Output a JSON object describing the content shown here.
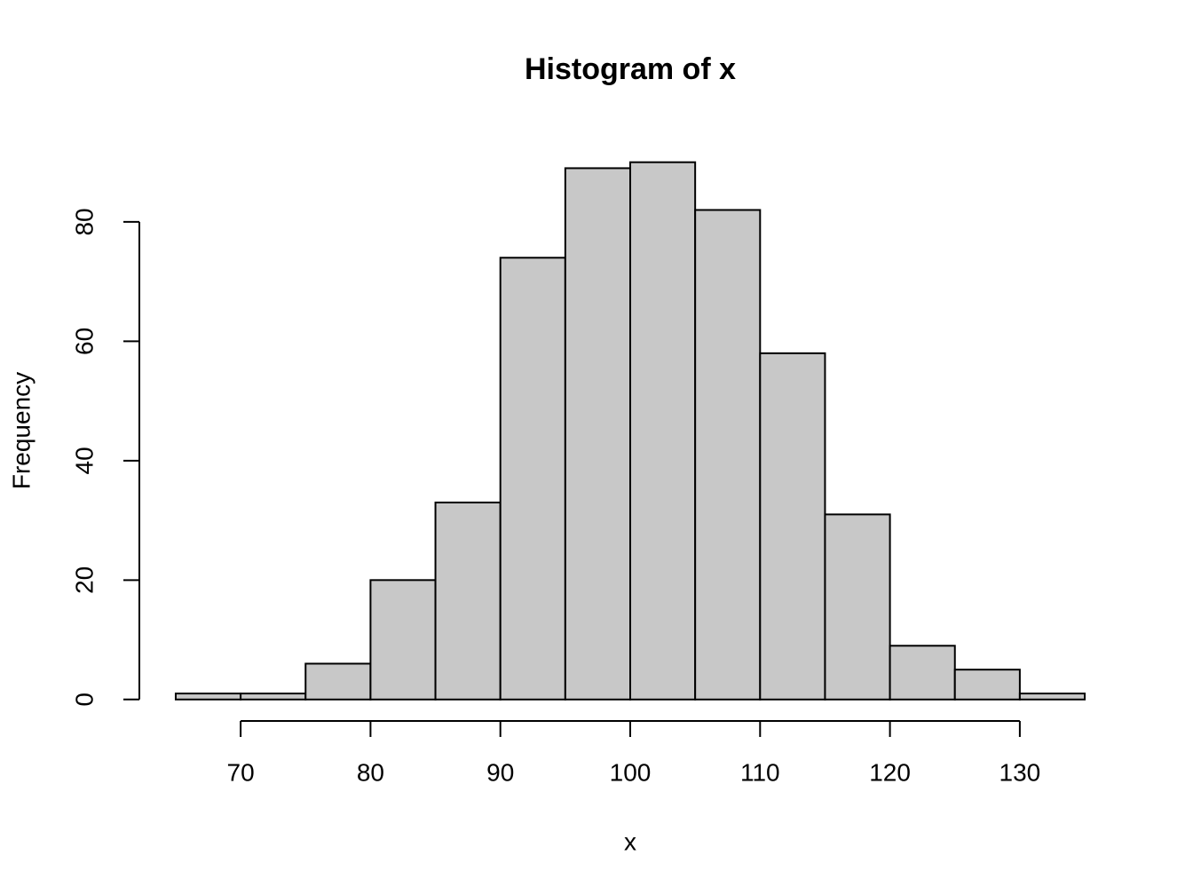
{
  "chart_data": {
    "type": "histogram",
    "title": "Histogram of x",
    "xlabel": "x",
    "ylabel": "Frequency",
    "bins": [
      65,
      70,
      75,
      80,
      85,
      90,
      95,
      100,
      105,
      110,
      115,
      120,
      125,
      130,
      135
    ],
    "counts": [
      1,
      1,
      6,
      20,
      33,
      74,
      89,
      90,
      82,
      58,
      31,
      9,
      5,
      1
    ],
    "color": "#c8c8c8",
    "xlim": [
      62.2,
      137.8
    ],
    "ylim": [
      -3.6,
      93.6
    ],
    "xticks": [
      70,
      80,
      90,
      100,
      110,
      120,
      130
    ],
    "yticks": [
      0,
      20,
      40,
      60,
      80
    ]
  }
}
